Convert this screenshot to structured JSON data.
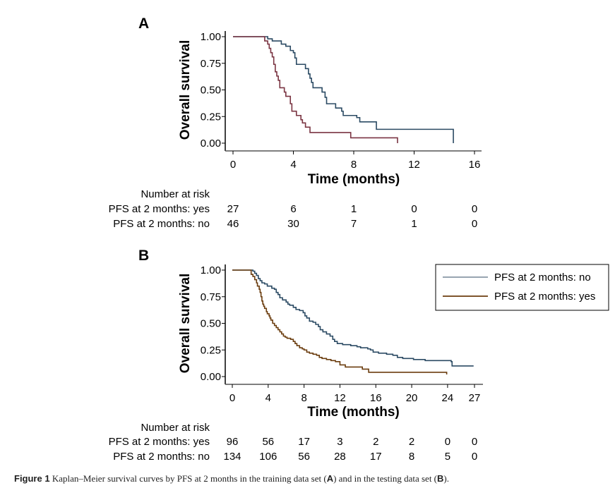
{
  "chart_data": [
    {
      "type": "line",
      "subtype": "kaplan-meier-step",
      "panel": "A",
      "title": "",
      "xlabel": "Time (months)",
      "ylabel": "Overall survival",
      "xlim": [
        0,
        16
      ],
      "ylim": [
        0,
        1
      ],
      "xticks": [
        0,
        4,
        8,
        12,
        16
      ],
      "yticks": [
        0.0,
        0.25,
        0.5,
        0.75,
        1.0
      ],
      "ytick_labels": [
        "0.00",
        "0.25",
        "0.50",
        "0.75",
        "1.00"
      ],
      "grid": false,
      "legend": null,
      "series": [
        {
          "name": "PFS at 2 months: no",
          "color": "#2b4a63",
          "end_drop": true,
          "points": [
            [
              0,
              1.0
            ],
            [
              2.0,
              1.0
            ],
            [
              2.3,
              0.98
            ],
            [
              2.6,
              0.96
            ],
            [
              3.2,
              0.93
            ],
            [
              3.5,
              0.91
            ],
            [
              3.8,
              0.87
            ],
            [
              4.0,
              0.85
            ],
            [
              4.1,
              0.8
            ],
            [
              4.2,
              0.74
            ],
            [
              4.8,
              0.7
            ],
            [
              5.0,
              0.65
            ],
            [
              5.1,
              0.61
            ],
            [
              5.2,
              0.57
            ],
            [
              5.3,
              0.52
            ],
            [
              5.9,
              0.48
            ],
            [
              6.1,
              0.43
            ],
            [
              6.2,
              0.37
            ],
            [
              6.8,
              0.33
            ],
            [
              7.2,
              0.3
            ],
            [
              7.3,
              0.26
            ],
            [
              8.2,
              0.24
            ],
            [
              8.4,
              0.2
            ],
            [
              9.5,
              0.13
            ],
            [
              14.6,
              0.13
            ]
          ]
        },
        {
          "name": "PFS at 2 months: yes",
          "color": "#7a3442",
          "end_drop": true,
          "points": [
            [
              0,
              1.0
            ],
            [
              2.0,
              1.0
            ],
            [
              2.1,
              0.96
            ],
            [
              2.3,
              0.93
            ],
            [
              2.4,
              0.89
            ],
            [
              2.5,
              0.85
            ],
            [
              2.6,
              0.81
            ],
            [
              2.7,
              0.74
            ],
            [
              2.8,
              0.67
            ],
            [
              2.9,
              0.63
            ],
            [
              3.0,
              0.59
            ],
            [
              3.1,
              0.52
            ],
            [
              3.4,
              0.48
            ],
            [
              3.5,
              0.44
            ],
            [
              3.8,
              0.37
            ],
            [
              3.9,
              0.3
            ],
            [
              4.2,
              0.26
            ],
            [
              4.5,
              0.22
            ],
            [
              4.6,
              0.19
            ],
            [
              4.8,
              0.15
            ],
            [
              5.1,
              0.1
            ],
            [
              7.8,
              0.05
            ],
            [
              10.9,
              0.05
            ]
          ]
        }
      ],
      "risk_table": {
        "title": "Number at risk",
        "times": [
          0,
          4,
          8,
          12,
          16
        ],
        "rows": [
          {
            "label": "PFS at 2 months: yes",
            "values": [
              27,
              6,
              1,
              0,
              0
            ]
          },
          {
            "label": "PFS at 2 months: no",
            "values": [
              46,
              30,
              7,
              1,
              0
            ]
          }
        ]
      }
    },
    {
      "type": "line",
      "subtype": "kaplan-meier-step",
      "panel": "B",
      "title": "",
      "xlabel": "Time (months)",
      "ylabel": "Overall survival",
      "xlim": [
        0,
        27
      ],
      "ylim": [
        0,
        1
      ],
      "xticks": [
        0,
        4,
        8,
        12,
        16,
        20,
        24,
        27
      ],
      "yticks": [
        0.0,
        0.25,
        0.5,
        0.75,
        1.0
      ],
      "ytick_labels": [
        "0.00",
        "0.25",
        "0.50",
        "0.75",
        "1.00"
      ],
      "grid": false,
      "legend": "top-right",
      "series": [
        {
          "name": "PFS at 2 months: no",
          "color": "#2b4a63",
          "legend_color": "#8a98a6",
          "end_drop": false,
          "points": [
            [
              0,
              1.0
            ],
            [
              2.1,
              1.0
            ],
            [
              2.3,
              0.99
            ],
            [
              2.5,
              0.97
            ],
            [
              2.7,
              0.95
            ],
            [
              2.9,
              0.92
            ],
            [
              3.1,
              0.9
            ],
            [
              3.3,
              0.88
            ],
            [
              3.6,
              0.87
            ],
            [
              3.9,
              0.85
            ],
            [
              4.4,
              0.83
            ],
            [
              4.7,
              0.82
            ],
            [
              4.9,
              0.79
            ],
            [
              5.1,
              0.77
            ],
            [
              5.3,
              0.74
            ],
            [
              5.6,
              0.72
            ],
            [
              6.0,
              0.7
            ],
            [
              6.2,
              0.68
            ],
            [
              6.4,
              0.67
            ],
            [
              6.8,
              0.65
            ],
            [
              7.1,
              0.63
            ],
            [
              7.5,
              0.62
            ],
            [
              7.9,
              0.6
            ],
            [
              8.1,
              0.57
            ],
            [
              8.3,
              0.55
            ],
            [
              8.6,
              0.52
            ],
            [
              9.0,
              0.51
            ],
            [
              9.3,
              0.49
            ],
            [
              9.6,
              0.47
            ],
            [
              9.8,
              0.44
            ],
            [
              10.1,
              0.42
            ],
            [
              10.5,
              0.4
            ],
            [
              10.9,
              0.38
            ],
            [
              11.2,
              0.35
            ],
            [
              11.4,
              0.33
            ],
            [
              11.7,
              0.31
            ],
            [
              12.3,
              0.3
            ],
            [
              13.2,
              0.29
            ],
            [
              13.9,
              0.28
            ],
            [
              14.3,
              0.27
            ],
            [
              15.1,
              0.26
            ],
            [
              15.4,
              0.25
            ],
            [
              15.7,
              0.23
            ],
            [
              16.3,
              0.22
            ],
            [
              17.2,
              0.21
            ],
            [
              17.9,
              0.2
            ],
            [
              18.4,
              0.18
            ],
            [
              19.0,
              0.17
            ],
            [
              20.2,
              0.16
            ],
            [
              21.5,
              0.15
            ],
            [
              24.4,
              0.14
            ],
            [
              24.5,
              0.1
            ],
            [
              26.9,
              0.1
            ]
          ]
        },
        {
          "name": "PFS at 2 months: yes",
          "color": "#6b3d0f",
          "legend_color": "#6b3d0f",
          "end_drop": false,
          "points": [
            [
              0,
              1.0
            ],
            [
              2.0,
              1.0
            ],
            [
              2.1,
              0.96
            ],
            [
              2.3,
              0.94
            ],
            [
              2.5,
              0.91
            ],
            [
              2.7,
              0.88
            ],
            [
              2.8,
              0.85
            ],
            [
              3.0,
              0.82
            ],
            [
              3.1,
              0.79
            ],
            [
              3.2,
              0.75
            ],
            [
              3.3,
              0.71
            ],
            [
              3.4,
              0.68
            ],
            [
              3.5,
              0.66
            ],
            [
              3.6,
              0.64
            ],
            [
              3.8,
              0.61
            ],
            [
              3.9,
              0.59
            ],
            [
              4.1,
              0.57
            ],
            [
              4.2,
              0.55
            ],
            [
              4.3,
              0.53
            ],
            [
              4.5,
              0.5
            ],
            [
              4.7,
              0.48
            ],
            [
              4.9,
              0.46
            ],
            [
              5.1,
              0.44
            ],
            [
              5.3,
              0.42
            ],
            [
              5.5,
              0.4
            ],
            [
              5.7,
              0.38
            ],
            [
              5.9,
              0.37
            ],
            [
              6.1,
              0.36
            ],
            [
              6.5,
              0.35
            ],
            [
              6.8,
              0.33
            ],
            [
              7.0,
              0.31
            ],
            [
              7.2,
              0.29
            ],
            [
              7.5,
              0.27
            ],
            [
              7.8,
              0.26
            ],
            [
              8.0,
              0.25
            ],
            [
              8.3,
              0.23
            ],
            [
              8.6,
              0.22
            ],
            [
              9.0,
              0.21
            ],
            [
              9.4,
              0.2
            ],
            [
              9.7,
              0.18
            ],
            [
              10.0,
              0.17
            ],
            [
              10.5,
              0.16
            ],
            [
              11.0,
              0.15
            ],
            [
              11.5,
              0.14
            ],
            [
              12.0,
              0.11
            ],
            [
              12.6,
              0.09
            ],
            [
              14.2,
              0.09
            ],
            [
              14.5,
              0.07
            ],
            [
              15.2,
              0.04
            ],
            [
              18.0,
              0.04
            ],
            [
              23.9,
              0.02
            ]
          ]
        }
      ],
      "risk_table": {
        "title": "Number at risk",
        "times": [
          0,
          4,
          8,
          12,
          16,
          20,
          24,
          27
        ],
        "rows": [
          {
            "label": "PFS at 2 months: yes",
            "values": [
              96,
              56,
              17,
              3,
              2,
              2,
              0,
              0
            ]
          },
          {
            "label": "PFS at 2 months: no",
            "values": [
              134,
              106,
              56,
              28,
              17,
              8,
              5,
              0
            ]
          }
        ]
      }
    }
  ],
  "figure": {
    "panel_a_label": "A",
    "panel_b_label": "B",
    "caption_prefix": "Figure 1",
    "caption_text": " Kaplan–Meier survival curves by PFS at 2 months in the training data set (",
    "caption_a": "A",
    "caption_mid": ") and in the testing data set (",
    "caption_b": "B",
    "caption_end": ")."
  }
}
